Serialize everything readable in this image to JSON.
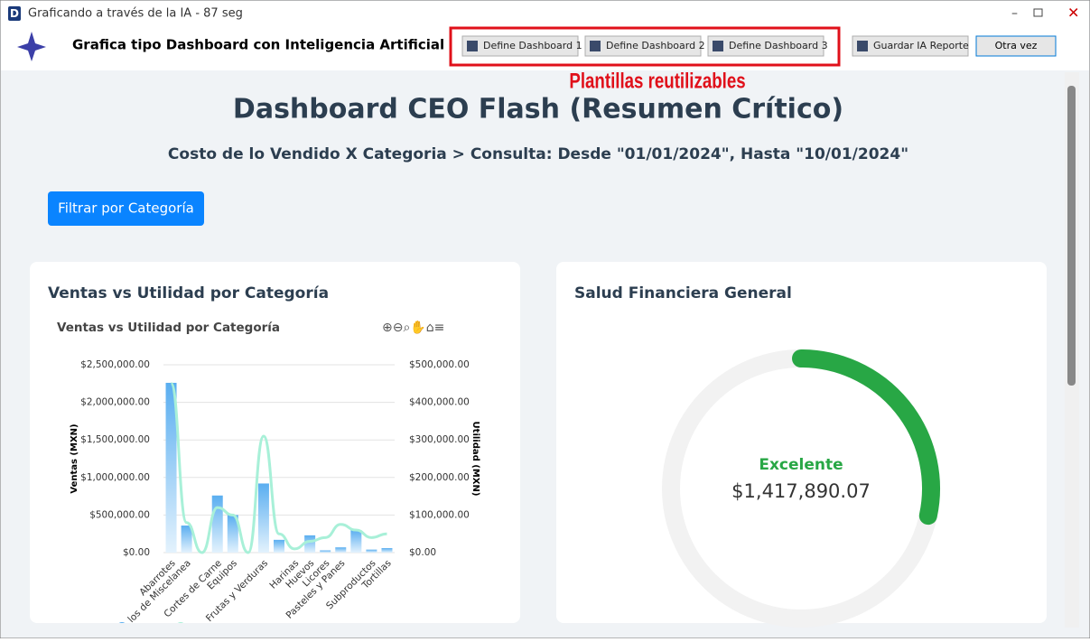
{
  "window": {
    "title": "Graficando a través de la IA - 87 seg"
  },
  "toolbar": {
    "title": "Grafica tipo Dashboard con Inteligencia Artificial",
    "buttons": [
      "Define Dashboard 1",
      "Define Dashboard 2",
      "Define Dashboard 3",
      "Guardar IA Reporte"
    ],
    "retry": "Otra vez"
  },
  "annotation": "Plantillas reutilizables",
  "dashboard": {
    "title": "Dashboard CEO Flash (Resumen Crítico)",
    "subtitle": "Costo de lo Vendido X Categoria > Consulta: Desde \"01/01/2024\", Hasta \"10/01/2024\"",
    "filter_button": "Filtrar por Categoría",
    "card_titles": [
      "Ventas vs Utilidad por Categoría",
      "Salud Financiera General"
    ]
  },
  "chart_data": [
    {
      "type": "bar-line",
      "title": "Ventas vs Utilidad por Categoría",
      "y_label": "Ventas (MXN)",
      "y2_label": "Utilidad (MXN)",
      "categories": [
        "Abarrotes",
        "los de Miscelanea",
        null,
        "Cortes de Carne",
        "Equipos",
        null,
        "Frutas y Verduras",
        null,
        "Harinas",
        "Huevos",
        "Licores",
        "Pasteles y Panes",
        null,
        "Subproductos",
        "Tortillas"
      ],
      "series": [
        {
          "name": "Ventas",
          "color": "#5aaef0",
          "values": [
            2260000,
            360000,
            0,
            760000,
            500000,
            0,
            920000,
            170000,
            0,
            230000,
            30000,
            70000,
            300000,
            40000,
            60000
          ]
        },
        {
          "name": "Utilidad",
          "color": "#a8f0d8",
          "axis": "y2",
          "values": [
            450000,
            80000,
            0,
            120000,
            100000,
            0,
            310000,
            50000,
            10000,
            30000,
            40000,
            75000,
            60000,
            40000,
            50000
          ]
        }
      ],
      "ylim": [
        0,
        2500000
      ],
      "yticks": [
        {
          "value": 0,
          "label": "$0.00"
        },
        {
          "value": 500000,
          "label": "$500,000.00"
        },
        {
          "value": 1000000,
          "label": "$1,000,000.00"
        },
        {
          "value": 1500000,
          "label": "$1,500,000.00"
        },
        {
          "value": 2000000,
          "label": "$2,000,000.00"
        },
        {
          "value": 2500000,
          "label": "$2,500,000.00"
        }
      ],
      "y2lim": [
        0,
        500000
      ],
      "y2ticks": [
        {
          "value": 0,
          "label": "$0.00"
        },
        {
          "value": 100000,
          "label": "$100,000.00"
        },
        {
          "value": 200000,
          "label": "$200,000.00"
        },
        {
          "value": 300000,
          "label": "$300,000.00"
        },
        {
          "value": 400000,
          "label": "$400,000.00"
        },
        {
          "value": 500000,
          "label": "$500,000.00"
        }
      ],
      "grid": true
    },
    {
      "type": "gauge",
      "status": "Excelente",
      "value": 1417890.07,
      "value_labels": "$1,417,890.07",
      "ylim": [
        0,
        5000000
      ],
      "color": "#28a745"
    }
  ]
}
